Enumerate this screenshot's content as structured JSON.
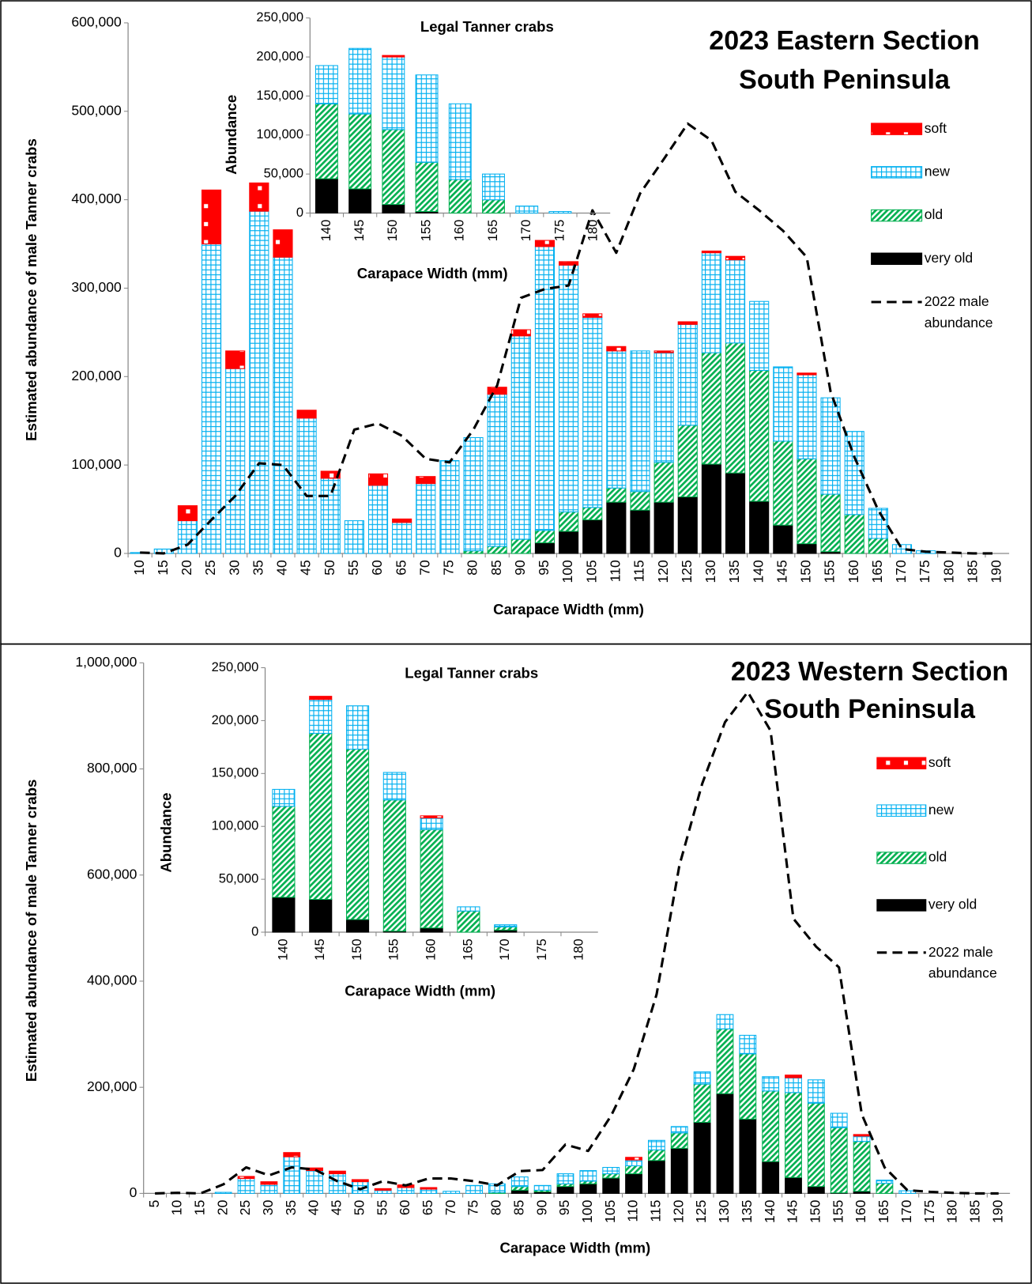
{
  "chart_data": [
    {
      "type": "bar",
      "title": [
        "2023 Eastern Section",
        "South Peninsula"
      ],
      "x_label": "Carapace Width (mm)",
      "y_label": "Estimated abundance of male Tanner crabs",
      "legend": "right",
      "categories": [
        "10",
        "15",
        "20",
        "25",
        "30",
        "35",
        "40",
        "45",
        "50",
        "55",
        "60",
        "65",
        "70",
        "75",
        "80",
        "85",
        "90",
        "95",
        "100",
        "105",
        "110",
        "115",
        "120",
        "125",
        "130",
        "135",
        "140",
        "145",
        "150",
        "155",
        "160",
        "165",
        "170",
        "175",
        "180",
        "185",
        "190"
      ],
      "ylim": [
        0,
        600000
      ],
      "yticks": [
        0,
        {
          "value": 100000,
          "label": "100,000"
        },
        {
          "value": 200000,
          "label": "200,000"
        },
        {
          "value": 300000,
          "label": "300,000"
        },
        {
          "value": 400000,
          "label": "400,000"
        },
        {
          "value": 500000,
          "label": "500,000"
        },
        {
          "value": 600000,
          "label": "600,000"
        }
      ],
      "series": [
        {
          "name": "soft",
          "color": "#ff0000",
          "fill_pattern": "dots",
          "values": [
            0,
            0,
            17000,
            61000,
            20000,
            32000,
            31000,
            9000,
            8000,
            0,
            13000,
            4000,
            8000,
            0,
            0,
            8000,
            7000,
            7000,
            4000,
            4000,
            5000,
            0,
            2000,
            3000,
            2000,
            4000,
            0,
            0,
            2000,
            0,
            0,
            0,
            0,
            0,
            0,
            0,
            0
          ]
        },
        {
          "name": "new",
          "color": "#00b0f0",
          "fill_pattern": "grid",
          "values": [
            1000,
            5000,
            37000,
            350000,
            209000,
            387000,
            335000,
            153000,
            85000,
            37000,
            77000,
            35000,
            79000,
            105000,
            128000,
            172000,
            230000,
            321000,
            279000,
            215000,
            155000,
            159000,
            124000,
            114000,
            113000,
            94000,
            78000,
            84000,
            95000,
            109000,
            94000,
            34000,
            10000,
            3000,
            0,
            0,
            0
          ]
        },
        {
          "name": "old",
          "color": "#00b050",
          "fill_pattern": "diagonal",
          "values": [
            0,
            0,
            0,
            0,
            0,
            0,
            0,
            0,
            0,
            0,
            0,
            0,
            0,
            0,
            3000,
            8000,
            16000,
            14000,
            22000,
            14000,
            16000,
            21000,
            45000,
            81000,
            126000,
            147000,
            148000,
            95000,
            96000,
            65000,
            44000,
            17000,
            0,
            0,
            0,
            0,
            0
          ]
        },
        {
          "name": "very old",
          "color": "#000000",
          "fill_pattern": "solid",
          "values": [
            0,
            0,
            0,
            0,
            0,
            0,
            0,
            0,
            0,
            0,
            0,
            0,
            0,
            0,
            0,
            0,
            0,
            12000,
            25000,
            38000,
            58000,
            49000,
            58000,
            64000,
            101000,
            91000,
            59000,
            32000,
            11000,
            2000,
            0,
            0,
            0,
            0,
            0,
            0,
            0
          ]
        },
        {
          "name": "2022 male abundance",
          "type": "line",
          "dashed": true,
          "color": "#000000",
          "values": [
            1000,
            0,
            10000,
            38000,
            65000,
            102000,
            100000,
            65000,
            65000,
            140000,
            147000,
            133000,
            107000,
            103000,
            140000,
            190000,
            289000,
            299000,
            303000,
            388000,
            340000,
            407000,
            446000,
            486000,
            467000,
            409000,
            388000,
            365000,
            335000,
            183000,
            109000,
            49000,
            5000,
            2000,
            1000,
            0,
            0
          ]
        }
      ]
    },
    {
      "type": "bar",
      "title": "Legal Tanner crabs",
      "x_label": "Carapace Width (mm)",
      "y_label": "Abundance",
      "categories": [
        "140",
        "145",
        "150",
        "155",
        "160",
        "165",
        "170",
        "175",
        "180"
      ],
      "ylim": [
        0,
        250000
      ],
      "yticks": [
        0,
        {
          "value": 50000,
          "label": "50,000"
        },
        {
          "value": 100000,
          "label": "100,000"
        },
        {
          "value": 150000,
          "label": "150,000"
        },
        {
          "value": 200000,
          "label": "200,000"
        },
        {
          "value": 250000,
          "label": "250,000"
        }
      ],
      "series": [
        {
          "color": "#ff0000",
          "fill_pattern": "dots",
          "values": [
            0,
            0,
            2000,
            0,
            0,
            0,
            0,
            0,
            0
          ]
        },
        {
          "color": "#00b0f0",
          "fill_pattern": "grid",
          "values": [
            49000,
            84000,
            93000,
            112000,
            97000,
            33000,
            9000,
            2000,
            0
          ]
        },
        {
          "color": "#00b050",
          "fill_pattern": "diagonal",
          "values": [
            96000,
            96000,
            96000,
            63000,
            43000,
            17000,
            0,
            0,
            0
          ]
        },
        {
          "color": "#000000",
          "fill_pattern": "solid",
          "values": [
            44000,
            31000,
            11000,
            2000,
            0,
            0,
            0,
            0,
            0
          ]
        }
      ]
    },
    {
      "type": "bar",
      "title": [
        "2023 Western Section",
        "South Peninsula"
      ],
      "x_label": "Carapace Width (mm)",
      "y_label": "Estimated abundance of male Tanner crabs",
      "legend": "right",
      "categories": [
        "5",
        "10",
        "15",
        "20",
        "25",
        "30",
        "35",
        "40",
        "45",
        "50",
        "55",
        "60",
        "65",
        "70",
        "75",
        "80",
        "85",
        "90",
        "95",
        "100",
        "105",
        "110",
        "115",
        "120",
        "125",
        "130",
        "135",
        "140",
        "145",
        "150",
        "155",
        "160",
        "165",
        "170",
        "175",
        "180",
        "185",
        "190"
      ],
      "ylim": [
        0,
        1000000
      ],
      "yticks": [
        0,
        {
          "value": 200000,
          "label": "200,000"
        },
        {
          "value": 400000,
          "label": "400,000"
        },
        {
          "value": 600000,
          "label": "600,000"
        },
        {
          "value": 800000,
          "label": "800,000"
        },
        {
          "value": 1000000,
          "label": "1,000,000"
        }
      ],
      "series": [
        {
          "name": "soft",
          "color": "#ff0000",
          "fill_pattern": "dots",
          "values": [
            0,
            0,
            0,
            0,
            4000,
            5000,
            8000,
            5000,
            5000,
            4000,
            3000,
            5000,
            3000,
            0,
            0,
            0,
            0,
            0,
            0,
            0,
            0,
            5000,
            0,
            0,
            0,
            0,
            0,
            0,
            5000,
            0,
            0,
            3000,
            0,
            0,
            0,
            0,
            0,
            0
          ]
        },
        {
          "name": "new",
          "color": "#00b0f0",
          "fill_pattern": "grid",
          "values": [
            0,
            0,
            0,
            2000,
            28000,
            17000,
            69000,
            43000,
            37000,
            22000,
            6000,
            11000,
            8000,
            4000,
            15000,
            16000,
            18000,
            9000,
            19000,
            20000,
            12000,
            11000,
            18000,
            12000,
            23000,
            27000,
            35000,
            27000,
            28000,
            44000,
            27000,
            10000,
            6000,
            5000,
            0,
            0,
            0,
            0
          ]
        },
        {
          "name": "old",
          "color": "#00b050",
          "fill_pattern": "diagonal",
          "values": [
            0,
            0,
            0,
            0,
            0,
            0,
            0,
            0,
            0,
            0,
            0,
            0,
            0,
            0,
            0,
            2000,
            7000,
            3000,
            5000,
            5000,
            8000,
            15000,
            20000,
            29000,
            72000,
            122000,
            123000,
            133000,
            160000,
            157000,
            123000,
            94000,
            19000,
            0,
            0,
            0,
            0,
            0
          ]
        },
        {
          "name": "very old",
          "color": "#000000",
          "fill_pattern": "solid",
          "values": [
            0,
            0,
            0,
            0,
            0,
            0,
            0,
            0,
            0,
            0,
            0,
            0,
            0,
            0,
            0,
            0,
            6000,
            3000,
            13000,
            18000,
            29000,
            37000,
            62000,
            85000,
            134000,
            188000,
            140000,
            60000,
            30000,
            13000,
            1000,
            4000,
            0,
            0,
            0,
            0,
            0,
            0
          ]
        },
        {
          "name": "2022 male abundance",
          "type": "line",
          "dashed": true,
          "color": "#000000",
          "values": [
            0,
            1000,
            0,
            17000,
            49000,
            34000,
            49000,
            45000,
            23000,
            8000,
            23000,
            15000,
            28000,
            28000,
            23000,
            15000,
            42000,
            44000,
            92000,
            80000,
            146000,
            234000,
            375000,
            618000,
            772000,
            888000,
            945000,
            872000,
            518000,
            465000,
            426000,
            149000,
            49000,
            6000,
            3000,
            1000,
            0,
            0
          ]
        }
      ]
    },
    {
      "type": "bar",
      "title": "Legal Tanner crabs",
      "x_label": "Carapace Width (mm)",
      "y_label": "Abundance",
      "categories": [
        "140",
        "145",
        "150",
        "155",
        "160",
        "165",
        "170",
        "175",
        "180"
      ],
      "ylim": [
        0,
        250000
      ],
      "yticks": [
        0,
        {
          "value": 50000,
          "label": "50,000"
        },
        {
          "value": 100000,
          "label": "100,000"
        },
        {
          "value": 150000,
          "label": "150,000"
        },
        {
          "value": 200000,
          "label": "200,000"
        },
        {
          "value": 250000,
          "label": "250,000"
        }
      ],
      "series": [
        {
          "color": "#ff0000",
          "fill_pattern": "dots",
          "values": [
            0,
            3000,
            0,
            0,
            2000,
            0,
            0,
            0,
            0
          ]
        },
        {
          "color": "#00b0f0",
          "fill_pattern": "grid",
          "values": [
            16000,
            32000,
            41000,
            26000,
            11000,
            4000,
            2000,
            0,
            0
          ]
        },
        {
          "color": "#00b050",
          "fill_pattern": "diagonal",
          "values": [
            86000,
            157000,
            161000,
            124000,
            93000,
            20000,
            3000,
            0,
            0
          ]
        },
        {
          "color": "#000000",
          "fill_pattern": "solid",
          "values": [
            33000,
            31000,
            12000,
            1000,
            4000,
            0,
            2000,
            0,
            0
          ]
        }
      ]
    }
  ]
}
